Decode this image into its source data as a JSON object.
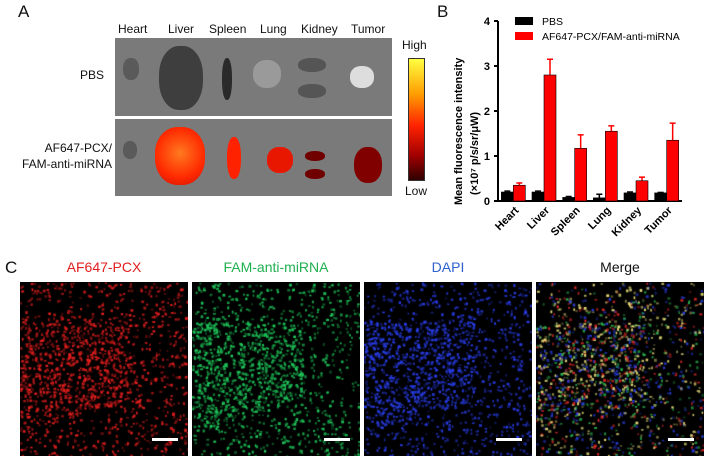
{
  "panel_a": {
    "label": "A",
    "organs": [
      "Heart",
      "Liver",
      "Spleen",
      "Lung",
      "Kidney",
      "Tumor"
    ],
    "row_labels": {
      "pbs": "PBS",
      "treated_line1": "AF647-PCX/",
      "treated_line2": "FAM-anti-miRNA"
    },
    "colorbar": {
      "high": "High",
      "low": "Low",
      "colors": [
        "#ffff40",
        "#ff9900",
        "#ff2200",
        "#a00000",
        "#300000"
      ]
    }
  },
  "chart_data": {
    "label": "B",
    "type": "bar",
    "categories": [
      "Heart",
      "Liver",
      "Spleen",
      "Lung",
      "Kidney",
      "Tumor"
    ],
    "series": [
      {
        "name": "PBS",
        "color": "#000000",
        "values": [
          0.2,
          0.2,
          0.08,
          0.07,
          0.18,
          0.18
        ],
        "errors": [
          0.02,
          0.02,
          0.02,
          0.08,
          0.02,
          0.01
        ]
      },
      {
        "name": "AF647-PCX/FAM-anti-miRNA",
        "color": "#ff0000",
        "values": [
          0.35,
          2.8,
          1.17,
          1.55,
          0.45,
          1.35
        ],
        "errors": [
          0.05,
          0.35,
          0.3,
          0.12,
          0.08,
          0.38
        ]
      }
    ],
    "ylabel_line1": "Mean  fluorescence intensity",
    "ylabel_line2": "(×10⁷ p/s/sr/μW)",
    "ylim": [
      0,
      4
    ],
    "yticks": [
      "0",
      "1",
      "2",
      "3",
      "4"
    ],
    "legend": "top-left"
  },
  "panel_c": {
    "label": "C",
    "channels": [
      {
        "title": "AF647-PCX",
        "color": "#e02020"
      },
      {
        "title": "FAM-anti-miRNA",
        "color": "#20b050"
      },
      {
        "title": "DAPI",
        "color": "#3060d0"
      },
      {
        "title": "Merge",
        "color": "#111111"
      }
    ]
  }
}
